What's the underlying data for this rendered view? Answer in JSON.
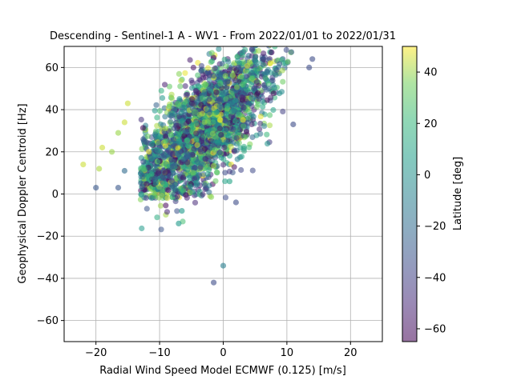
{
  "chart_data": {
    "type": "scatter",
    "title": "Descending - Sentinel-1 A - WV1 - From 2022/01/01 to 2022/01/31",
    "xlabel": "Radial Wind Speed Model ECMWF (0.125) [m/s]",
    "ylabel": "Geophysical Doppler Centroid [Hz]",
    "xlim": [
      -25,
      25
    ],
    "ylim": [
      -70,
      70
    ],
    "xticks": [
      -20,
      -10,
      0,
      10,
      20
    ],
    "yticks": [
      -60,
      -40,
      -20,
      0,
      20,
      40,
      60
    ],
    "grid": true,
    "colorbar": {
      "label": "Latitude [deg]",
      "range": [
        -65,
        50
      ],
      "ticks": [
        -60,
        -40,
        -20,
        0,
        20,
        40
      ],
      "colormap": "viridis"
    },
    "scatter_model": {
      "point_count": 2600,
      "trend_slope_hz_per_ms": 2.5,
      "trend_intercept_hz": 38,
      "x_center": -3,
      "x_spread": 5.5,
      "y_scatter": 13,
      "latitude_range": [
        -65,
        50
      ]
    },
    "outliers": [
      {
        "x": -22,
        "y": 14,
        "lat": 45
      },
      {
        "x": -19.5,
        "y": 12,
        "lat": 42
      },
      {
        "x": -19,
        "y": 22,
        "lat": 45
      },
      {
        "x": -20,
        "y": 3,
        "lat": -30
      },
      {
        "x": -17.5,
        "y": 20,
        "lat": 40
      },
      {
        "x": -16.5,
        "y": 29,
        "lat": 40
      },
      {
        "x": -15.5,
        "y": 34,
        "lat": 45
      },
      {
        "x": -15,
        "y": 43,
        "lat": 45
      },
      {
        "x": -16.5,
        "y": 3,
        "lat": -30
      },
      {
        "x": -15.5,
        "y": 11,
        "lat": -20
      },
      {
        "x": -7,
        "y": -14,
        "lat": 5
      },
      {
        "x": -6.5,
        "y": -8,
        "lat": 5
      },
      {
        "x": 0,
        "y": -34,
        "lat": -10
      },
      {
        "x": -1.5,
        "y": -42,
        "lat": -35
      },
      {
        "x": 2,
        "y": -4,
        "lat": -35
      },
      {
        "x": 1,
        "y": 6,
        "lat": 10
      },
      {
        "x": 11,
        "y": 33,
        "lat": -35
      },
      {
        "x": 14,
        "y": 64,
        "lat": -35
      },
      {
        "x": 13.5,
        "y": 60,
        "lat": -35
      }
    ]
  }
}
